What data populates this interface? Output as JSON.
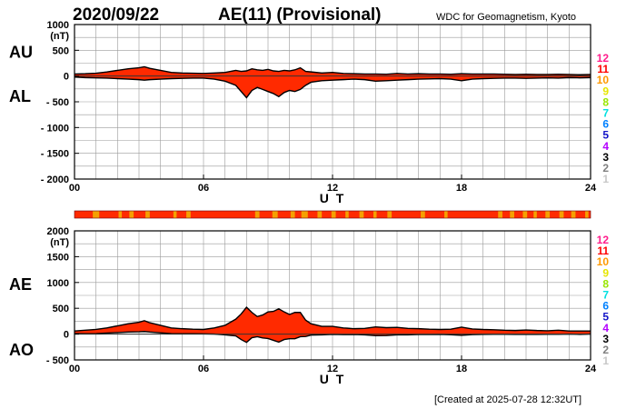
{
  "header": {
    "date": "2020/09/22",
    "title": "AE(11) (Provisional)",
    "source": "WDC for Geomagnetism, Kyoto"
  },
  "footer": {
    "created": "[Created at 2025-07-28 12:32UT]"
  },
  "colors": {
    "fill": "#ff2a00",
    "high_fill": "#f5a000",
    "outline": "#000000",
    "grid": "#9a9a9a"
  },
  "chart_data": [
    {
      "type": "area",
      "name": "AU/AL",
      "labels": {
        "upper": "AU",
        "lower": "AL"
      },
      "unit": "(nT)",
      "ylim": [
        -2000,
        1000
      ],
      "yticks": [
        1000,
        500,
        0,
        -500,
        -1000,
        -1500,
        -2000
      ],
      "ytick_labels": [
        "1000",
        "500",
        "0",
        "- 500",
        "- 1000",
        "- 1500",
        "- 2000"
      ],
      "xlim": [
        0,
        24
      ],
      "xticks": [
        0,
        6,
        12,
        18,
        24
      ],
      "xtick_labels": [
        "00",
        "06",
        "12",
        "18",
        "24"
      ],
      "xlabel": "U T",
      "x": [
        0,
        0.5,
        1,
        1.5,
        2,
        2.5,
        3,
        3.25,
        3.5,
        4,
        4.5,
        5,
        5.5,
        6,
        6.5,
        7,
        7.5,
        7.75,
        8,
        8.25,
        8.5,
        8.75,
        9,
        9.25,
        9.5,
        9.75,
        10,
        10.25,
        10.5,
        10.75,
        11,
        11.5,
        12,
        12.5,
        13,
        13.5,
        14,
        14.5,
        15,
        15.5,
        16,
        16.5,
        17,
        17.5,
        18,
        18.5,
        19,
        19.5,
        20,
        20.5,
        21,
        21.5,
        22,
        22.5,
        23,
        23.5,
        24
      ],
      "series": [
        {
          "name": "AU",
          "values": [
            40,
            45,
            55,
            80,
            110,
            140,
            160,
            180,
            150,
            110,
            70,
            60,
            55,
            50,
            60,
            70,
            110,
            90,
            100,
            140,
            120,
            110,
            130,
            100,
            90,
            110,
            100,
            120,
            160,
            90,
            80,
            60,
            70,
            50,
            45,
            40,
            40,
            35,
            50,
            40,
            45,
            40,
            40,
            35,
            45,
            40,
            40,
            40,
            35,
            30,
            35,
            30,
            30,
            35,
            30,
            25,
            30
          ]
        },
        {
          "name": "AL",
          "values": [
            -20,
            -30,
            -35,
            -40,
            -50,
            -60,
            -70,
            -80,
            -70,
            -60,
            -50,
            -45,
            -40,
            -40,
            -60,
            -100,
            -180,
            -300,
            -420,
            -280,
            -220,
            -260,
            -300,
            -340,
            -400,
            -320,
            -280,
            -300,
            -260,
            -180,
            -120,
            -90,
            -80,
            -70,
            -60,
            -70,
            -100,
            -90,
            -80,
            -70,
            -60,
            -55,
            -50,
            -60,
            -90,
            -60,
            -50,
            -45,
            -40,
            -40,
            -45,
            -40,
            -35,
            -40,
            -30,
            -35,
            -30
          ]
        }
      ]
    },
    {
      "type": "area",
      "name": "AE/AO",
      "labels": {
        "upper": "AE",
        "lower": "AO"
      },
      "unit": "(nT)",
      "ylim": [
        -500,
        2000
      ],
      "yticks": [
        2000,
        1500,
        1000,
        500,
        0,
        -500
      ],
      "ytick_labels": [
        "2000",
        "1500",
        "1000",
        "500",
        "0",
        "- 500"
      ],
      "xlim": [
        0,
        24
      ],
      "xticks": [
        0,
        6,
        12,
        18,
        24
      ],
      "xtick_labels": [
        "00",
        "06",
        "12",
        "18",
        "24"
      ],
      "xlabel": "U T",
      "x": [
        0,
        0.5,
        1,
        1.5,
        2,
        2.5,
        3,
        3.25,
        3.5,
        4,
        4.5,
        5,
        5.5,
        6,
        6.5,
        7,
        7.5,
        7.75,
        8,
        8.25,
        8.5,
        8.75,
        9,
        9.25,
        9.5,
        9.75,
        10,
        10.25,
        10.5,
        10.75,
        11,
        11.5,
        12,
        12.5,
        13,
        13.5,
        14,
        14.5,
        15,
        15.5,
        16,
        16.5,
        17,
        17.5,
        18,
        18.5,
        19,
        19.5,
        20,
        20.5,
        21,
        21.5,
        22,
        22.5,
        23,
        23.5,
        24
      ],
      "series": [
        {
          "name": "AE",
          "values": [
            60,
            75,
            90,
            120,
            160,
            200,
            230,
            260,
            220,
            170,
            120,
            105,
            95,
            90,
            120,
            170,
            290,
            390,
            520,
            420,
            340,
            370,
            430,
            440,
            490,
            430,
            380,
            420,
            420,
            270,
            200,
            150,
            150,
            120,
            105,
            110,
            140,
            125,
            130,
            110,
            105,
            95,
            90,
            95,
            135,
            100,
            90,
            85,
            75,
            70,
            80,
            70,
            65,
            75,
            60,
            60,
            60
          ]
        },
        {
          "name": "AO",
          "values": [
            10,
            8,
            10,
            20,
            30,
            40,
            45,
            50,
            40,
            25,
            10,
            8,
            8,
            5,
            0,
            -15,
            -35,
            -105,
            -160,
            -70,
            -50,
            -75,
            -85,
            -120,
            -155,
            -105,
            -90,
            -90,
            -50,
            -45,
            -20,
            -15,
            -5,
            -10,
            -8,
            -15,
            -30,
            -28,
            -15,
            -15,
            -8,
            -8,
            -5,
            -12,
            -23,
            -10,
            -5,
            -3,
            -3,
            -5,
            -5,
            -5,
            -3,
            -3,
            0,
            -5,
            0
          ]
        }
      ]
    }
  ],
  "activity_bar": {
    "segments": [
      0.85,
      1.15,
      2.05,
      2.2,
      2.55,
      2.75,
      3.3,
      3.5,
      4.6,
      4.75,
      5.2,
      5.4,
      8.4,
      8.6,
      9.2,
      9.45,
      10.05,
      10.25,
      10.55,
      10.85,
      11.3,
      11.5,
      11.95,
      12.15,
      12.6,
      12.75,
      13.25,
      13.45,
      13.9,
      14.05,
      14.55,
      14.75,
      16.1,
      16.3,
      17.2,
      17.35,
      19.7,
      19.9,
      20.25,
      20.45,
      20.85,
      21.05,
      21.35,
      21.5,
      21.9,
      22.1,
      22.55,
      22.75,
      23.1,
      23.3,
      23.75,
      23.9
    ]
  },
  "legend": {
    "items": [
      {
        "label": "12",
        "color": "#ff1e8c"
      },
      {
        "label": "11",
        "color": "#ff0000"
      },
      {
        "label": "10",
        "color": "#ff9900"
      },
      {
        "label": "9",
        "color": "#e6e600"
      },
      {
        "label": "8",
        "color": "#99e600"
      },
      {
        "label": "7",
        "color": "#00e0e0"
      },
      {
        "label": "6",
        "color": "#0080ff"
      },
      {
        "label": "5",
        "color": "#1414c8"
      },
      {
        "label": "4",
        "color": "#b400ff"
      },
      {
        "label": "3",
        "color": "#000000"
      },
      {
        "label": "2",
        "color": "#808080"
      },
      {
        "label": "1",
        "color": "#c8c8c8"
      }
    ]
  }
}
